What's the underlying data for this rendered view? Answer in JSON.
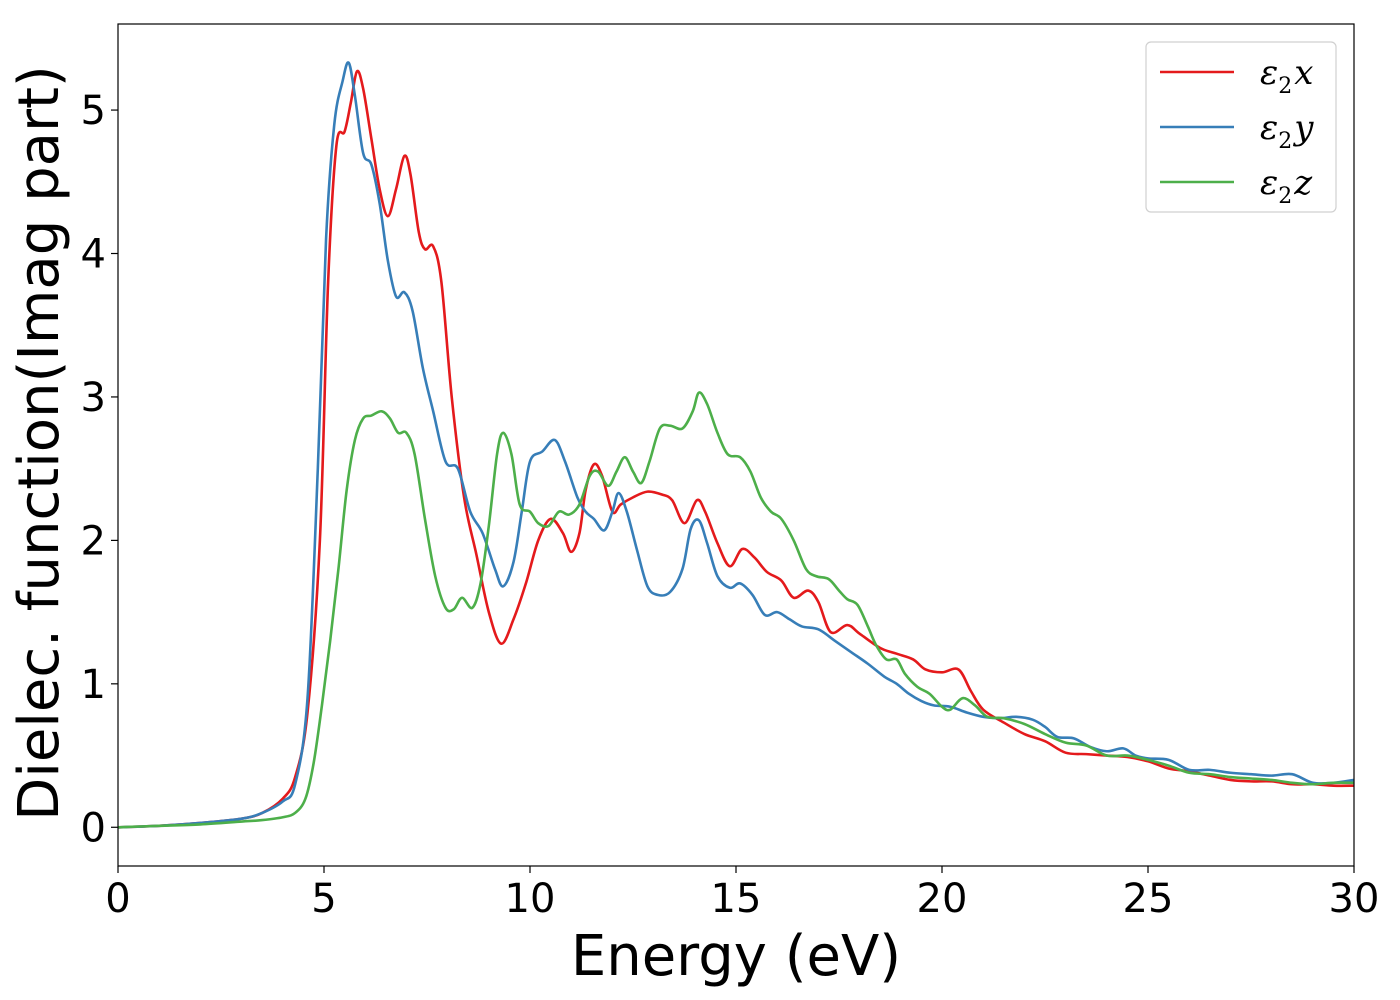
{
  "chart_data": {
    "type": "line",
    "title": "",
    "xlabel": "Energy (eV)",
    "ylabel": "Dielec. function(Imag part)",
    "xlim": [
      0,
      30
    ],
    "ylim": [
      -0.27,
      5.6
    ],
    "xticks": [
      0,
      5,
      10,
      15,
      20,
      25,
      30
    ],
    "yticks": [
      0,
      1,
      2,
      3,
      4,
      5
    ],
    "grid": false,
    "legend_position": "top-right",
    "series": [
      {
        "name": "ε2x",
        "legend": {
          "base": "ε",
          "sub": "2",
          "var": "x"
        },
        "color": "#e41a1c",
        "points": [
          [
            0,
            0
          ],
          [
            1,
            0.01
          ],
          [
            2,
            0.03
          ],
          [
            3,
            0.06
          ],
          [
            3.5,
            0.1
          ],
          [
            4,
            0.2
          ],
          [
            4.3,
            0.35
          ],
          [
            4.6,
            0.8
          ],
          [
            4.9,
            2.0
          ],
          [
            5.1,
            3.8
          ],
          [
            5.3,
            4.75
          ],
          [
            5.5,
            4.85
          ],
          [
            5.65,
            5.05
          ],
          [
            5.8,
            5.27
          ],
          [
            5.95,
            5.15
          ],
          [
            6.15,
            4.8
          ],
          [
            6.35,
            4.45
          ],
          [
            6.55,
            4.26
          ],
          [
            6.75,
            4.45
          ],
          [
            6.95,
            4.68
          ],
          [
            7.1,
            4.55
          ],
          [
            7.3,
            4.15
          ],
          [
            7.45,
            4.03
          ],
          [
            7.65,
            4.05
          ],
          [
            7.85,
            3.8
          ],
          [
            8.1,
            3.0
          ],
          [
            8.4,
            2.3
          ],
          [
            8.7,
            1.9
          ],
          [
            9.0,
            1.5
          ],
          [
            9.3,
            1.28
          ],
          [
            9.6,
            1.45
          ],
          [
            9.9,
            1.7
          ],
          [
            10.2,
            2.0
          ],
          [
            10.5,
            2.15
          ],
          [
            10.8,
            2.05
          ],
          [
            11.0,
            1.92
          ],
          [
            11.2,
            2.05
          ],
          [
            11.35,
            2.35
          ],
          [
            11.55,
            2.53
          ],
          [
            11.75,
            2.45
          ],
          [
            12.0,
            2.2
          ],
          [
            12.2,
            2.25
          ],
          [
            12.5,
            2.3
          ],
          [
            12.85,
            2.34
          ],
          [
            13.2,
            2.32
          ],
          [
            13.45,
            2.28
          ],
          [
            13.75,
            2.12
          ],
          [
            14.05,
            2.28
          ],
          [
            14.25,
            2.2
          ],
          [
            14.55,
            1.98
          ],
          [
            14.85,
            1.82
          ],
          [
            15.15,
            1.94
          ],
          [
            15.45,
            1.88
          ],
          [
            15.75,
            1.78
          ],
          [
            16.1,
            1.72
          ],
          [
            16.4,
            1.6
          ],
          [
            16.75,
            1.65
          ],
          [
            17.0,
            1.57
          ],
          [
            17.3,
            1.36
          ],
          [
            17.7,
            1.41
          ],
          [
            18.0,
            1.35
          ],
          [
            18.5,
            1.25
          ],
          [
            18.9,
            1.21
          ],
          [
            19.3,
            1.17
          ],
          [
            19.6,
            1.1
          ],
          [
            20.0,
            1.08
          ],
          [
            20.4,
            1.1
          ],
          [
            20.7,
            0.95
          ],
          [
            21.0,
            0.82
          ],
          [
            21.5,
            0.73
          ],
          [
            22.0,
            0.65
          ],
          [
            22.5,
            0.6
          ],
          [
            23.0,
            0.52
          ],
          [
            23.5,
            0.51
          ],
          [
            24.0,
            0.5
          ],
          [
            24.5,
            0.49
          ],
          [
            25.0,
            0.46
          ],
          [
            25.5,
            0.41
          ],
          [
            26.0,
            0.39
          ],
          [
            26.5,
            0.36
          ],
          [
            27.0,
            0.33
          ],
          [
            27.5,
            0.32
          ],
          [
            28.0,
            0.32
          ],
          [
            28.5,
            0.3
          ],
          [
            29.0,
            0.3
          ],
          [
            29.5,
            0.29
          ],
          [
            30.0,
            0.29
          ]
        ]
      },
      {
        "name": "ε2y",
        "legend": {
          "base": "ε",
          "sub": "2",
          "var": "y"
        },
        "color": "#377eb8",
        "points": [
          [
            0,
            0
          ],
          [
            1,
            0.01
          ],
          [
            2,
            0.03
          ],
          [
            3,
            0.06
          ],
          [
            3.5,
            0.1
          ],
          [
            4,
            0.18
          ],
          [
            4.3,
            0.3
          ],
          [
            4.6,
            0.9
          ],
          [
            4.85,
            2.5
          ],
          [
            5.05,
            4.1
          ],
          [
            5.25,
            4.9
          ],
          [
            5.45,
            5.2
          ],
          [
            5.6,
            5.33
          ],
          [
            5.75,
            5.1
          ],
          [
            5.95,
            4.7
          ],
          [
            6.15,
            4.62
          ],
          [
            6.35,
            4.35
          ],
          [
            6.55,
            3.95
          ],
          [
            6.75,
            3.7
          ],
          [
            6.95,
            3.73
          ],
          [
            7.15,
            3.6
          ],
          [
            7.4,
            3.2
          ],
          [
            7.65,
            2.9
          ],
          [
            7.95,
            2.55
          ],
          [
            8.25,
            2.5
          ],
          [
            8.55,
            2.2
          ],
          [
            8.85,
            2.05
          ],
          [
            9.15,
            1.8
          ],
          [
            9.35,
            1.68
          ],
          [
            9.6,
            1.85
          ],
          [
            9.8,
            2.2
          ],
          [
            10.0,
            2.55
          ],
          [
            10.3,
            2.62
          ],
          [
            10.6,
            2.7
          ],
          [
            10.85,
            2.55
          ],
          [
            11.15,
            2.3
          ],
          [
            11.35,
            2.2
          ],
          [
            11.55,
            2.15
          ],
          [
            11.8,
            2.07
          ],
          [
            12.0,
            2.2
          ],
          [
            12.15,
            2.33
          ],
          [
            12.35,
            2.2
          ],
          [
            12.6,
            1.93
          ],
          [
            12.85,
            1.68
          ],
          [
            13.1,
            1.62
          ],
          [
            13.4,
            1.64
          ],
          [
            13.7,
            1.8
          ],
          [
            13.9,
            2.08
          ],
          [
            14.1,
            2.14
          ],
          [
            14.3,
            1.98
          ],
          [
            14.55,
            1.75
          ],
          [
            14.85,
            1.67
          ],
          [
            15.1,
            1.7
          ],
          [
            15.4,
            1.62
          ],
          [
            15.7,
            1.48
          ],
          [
            16.0,
            1.5
          ],
          [
            16.3,
            1.45
          ],
          [
            16.6,
            1.4
          ],
          [
            17.0,
            1.38
          ],
          [
            17.4,
            1.3
          ],
          [
            17.8,
            1.22
          ],
          [
            18.2,
            1.14
          ],
          [
            18.6,
            1.05
          ],
          [
            18.9,
            1.0
          ],
          [
            19.2,
            0.93
          ],
          [
            19.5,
            0.88
          ],
          [
            19.8,
            0.85
          ],
          [
            20.2,
            0.84
          ],
          [
            20.6,
            0.8
          ],
          [
            21.0,
            0.77
          ],
          [
            21.4,
            0.76
          ],
          [
            21.8,
            0.77
          ],
          [
            22.2,
            0.75
          ],
          [
            22.5,
            0.7
          ],
          [
            22.8,
            0.63
          ],
          [
            23.2,
            0.62
          ],
          [
            23.6,
            0.56
          ],
          [
            24.0,
            0.53
          ],
          [
            24.4,
            0.55
          ],
          [
            24.7,
            0.5
          ],
          [
            25.0,
            0.48
          ],
          [
            25.5,
            0.47
          ],
          [
            26.0,
            0.4
          ],
          [
            26.5,
            0.4
          ],
          [
            27.0,
            0.38
          ],
          [
            27.5,
            0.37
          ],
          [
            28.0,
            0.36
          ],
          [
            28.5,
            0.37
          ],
          [
            29.0,
            0.31
          ],
          [
            29.5,
            0.31
          ],
          [
            30.0,
            0.33
          ]
        ]
      },
      {
        "name": "ε2z",
        "legend": {
          "base": "ε",
          "sub": "2",
          "var": "z"
        },
        "color": "#4daf4a",
        "points": [
          [
            0,
            0
          ],
          [
            1,
            0.01
          ],
          [
            2,
            0.02
          ],
          [
            3,
            0.04
          ],
          [
            3.5,
            0.05
          ],
          [
            4,
            0.07
          ],
          [
            4.3,
            0.1
          ],
          [
            4.55,
            0.2
          ],
          [
            4.75,
            0.45
          ],
          [
            4.95,
            0.85
          ],
          [
            5.15,
            1.3
          ],
          [
            5.35,
            1.8
          ],
          [
            5.55,
            2.35
          ],
          [
            5.75,
            2.7
          ],
          [
            5.95,
            2.85
          ],
          [
            6.15,
            2.87
          ],
          [
            6.4,
            2.9
          ],
          [
            6.6,
            2.85
          ],
          [
            6.8,
            2.75
          ],
          [
            7.0,
            2.75
          ],
          [
            7.2,
            2.6
          ],
          [
            7.45,
            2.15
          ],
          [
            7.7,
            1.75
          ],
          [
            7.95,
            1.53
          ],
          [
            8.15,
            1.52
          ],
          [
            8.35,
            1.6
          ],
          [
            8.6,
            1.53
          ],
          [
            8.8,
            1.7
          ],
          [
            9.0,
            2.1
          ],
          [
            9.2,
            2.6
          ],
          [
            9.35,
            2.75
          ],
          [
            9.55,
            2.6
          ],
          [
            9.75,
            2.25
          ],
          [
            10.0,
            2.2
          ],
          [
            10.2,
            2.12
          ],
          [
            10.45,
            2.1
          ],
          [
            10.7,
            2.2
          ],
          [
            10.95,
            2.18
          ],
          [
            11.2,
            2.25
          ],
          [
            11.45,
            2.45
          ],
          [
            11.65,
            2.48
          ],
          [
            11.9,
            2.38
          ],
          [
            12.1,
            2.48
          ],
          [
            12.3,
            2.58
          ],
          [
            12.5,
            2.48
          ],
          [
            12.7,
            2.4
          ],
          [
            12.9,
            2.55
          ],
          [
            13.15,
            2.78
          ],
          [
            13.4,
            2.8
          ],
          [
            13.7,
            2.78
          ],
          [
            13.95,
            2.9
          ],
          [
            14.1,
            3.03
          ],
          [
            14.3,
            2.95
          ],
          [
            14.55,
            2.75
          ],
          [
            14.8,
            2.6
          ],
          [
            15.1,
            2.58
          ],
          [
            15.35,
            2.48
          ],
          [
            15.6,
            2.3
          ],
          [
            15.85,
            2.2
          ],
          [
            16.1,
            2.15
          ],
          [
            16.4,
            2.0
          ],
          [
            16.7,
            1.8
          ],
          [
            16.95,
            1.75
          ],
          [
            17.25,
            1.73
          ],
          [
            17.5,
            1.65
          ],
          [
            17.7,
            1.59
          ],
          [
            17.95,
            1.55
          ],
          [
            18.2,
            1.4
          ],
          [
            18.4,
            1.27
          ],
          [
            18.65,
            1.17
          ],
          [
            18.9,
            1.17
          ],
          [
            19.1,
            1.07
          ],
          [
            19.4,
            0.98
          ],
          [
            19.7,
            0.93
          ],
          [
            20.0,
            0.84
          ],
          [
            20.2,
            0.82
          ],
          [
            20.5,
            0.9
          ],
          [
            20.8,
            0.85
          ],
          [
            21.1,
            0.77
          ],
          [
            21.5,
            0.76
          ],
          [
            22.0,
            0.72
          ],
          [
            22.5,
            0.65
          ],
          [
            23.0,
            0.59
          ],
          [
            23.5,
            0.57
          ],
          [
            24.0,
            0.5
          ],
          [
            24.5,
            0.5
          ],
          [
            25.0,
            0.47
          ],
          [
            25.5,
            0.43
          ],
          [
            26.0,
            0.38
          ],
          [
            26.5,
            0.37
          ],
          [
            27.0,
            0.35
          ],
          [
            27.5,
            0.34
          ],
          [
            28.0,
            0.33
          ],
          [
            28.5,
            0.31
          ],
          [
            29.0,
            0.3
          ],
          [
            29.5,
            0.31
          ],
          [
            30.0,
            0.31
          ]
        ]
      }
    ]
  }
}
